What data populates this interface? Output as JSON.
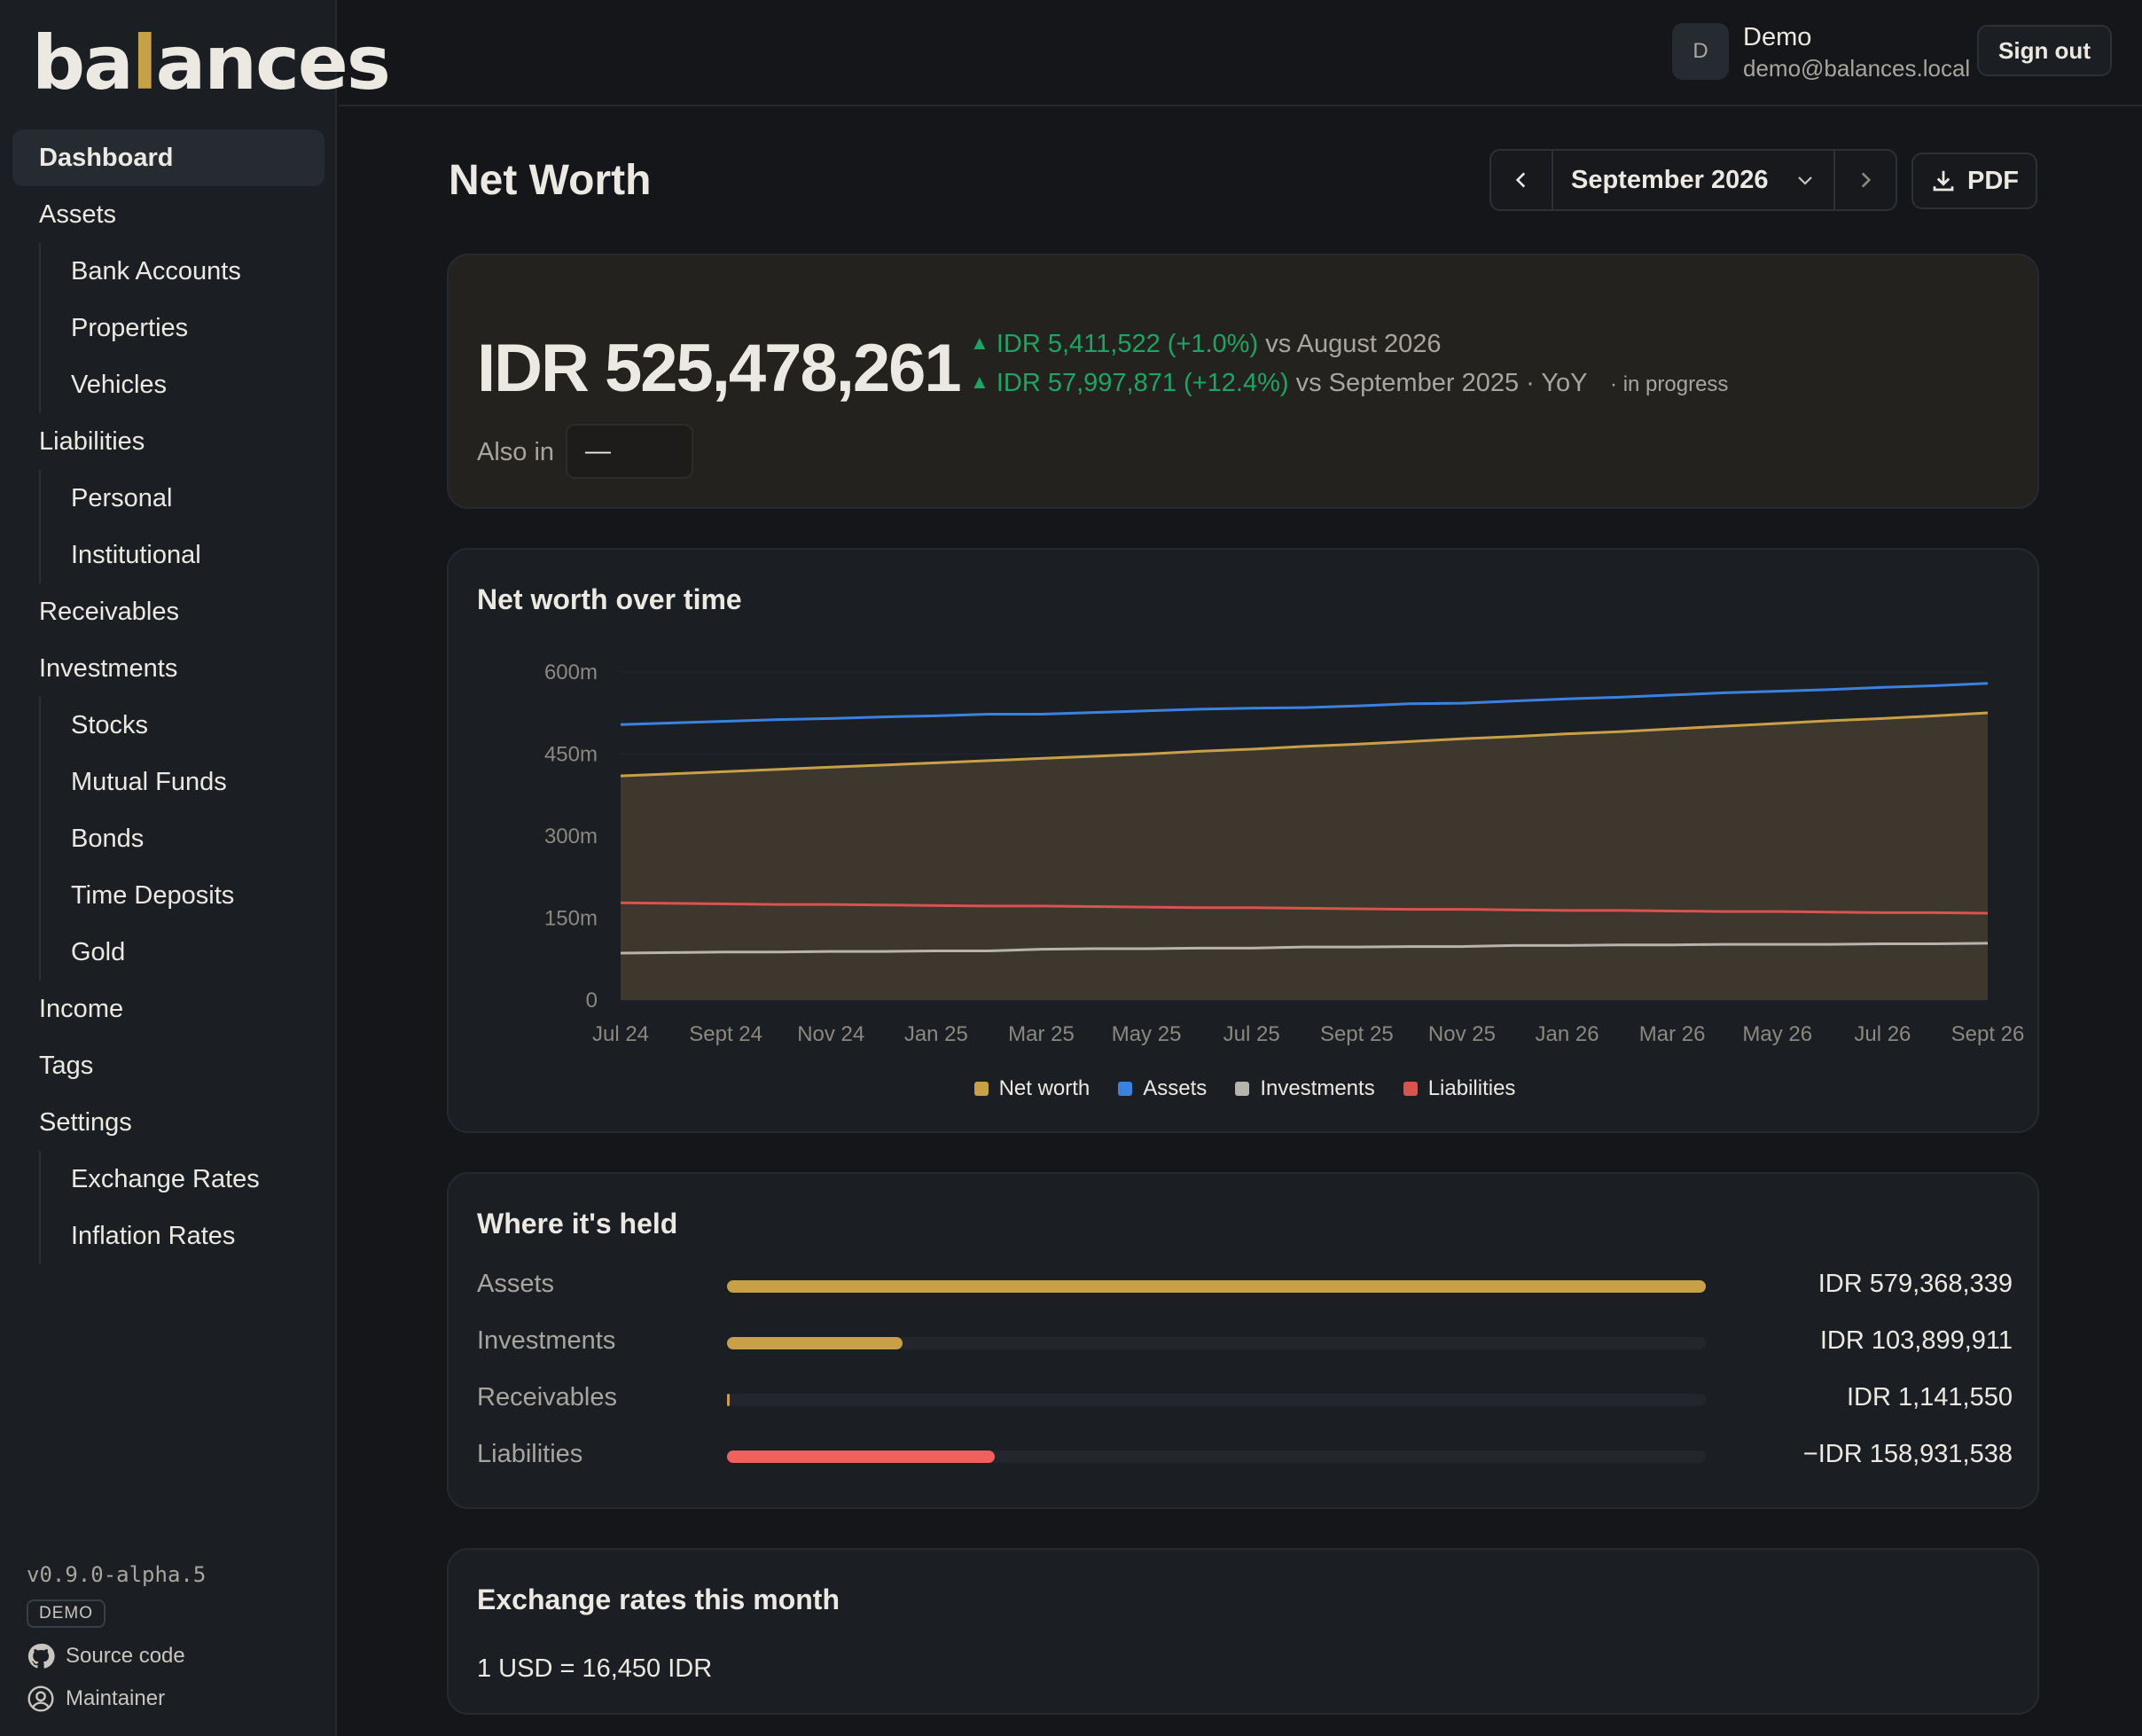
{
  "app": {
    "logo_before": "ba",
    "logo_accent": "l",
    "logo_after": "ances"
  },
  "sidebar": {
    "items": [
      {
        "label": "Dashboard",
        "active": true
      },
      {
        "label": "Assets",
        "children": [
          "Bank Accounts",
          "Properties",
          "Vehicles"
        ]
      },
      {
        "label": "Liabilities",
        "children": [
          "Personal",
          "Institutional"
        ]
      },
      {
        "label": "Receivables"
      },
      {
        "label": "Investments",
        "children": [
          "Stocks",
          "Mutual Funds",
          "Bonds",
          "Time Deposits",
          "Gold"
        ]
      },
      {
        "label": "Income"
      },
      {
        "label": "Tags"
      },
      {
        "label": "Settings",
        "children": [
          "Exchange Rates",
          "Inflation Rates"
        ]
      }
    ],
    "version": "v0.9.0-alpha.5",
    "badge": "DEMO",
    "source_link": "Source code",
    "maintainer_link": "Maintainer"
  },
  "topbar": {
    "avatar_initial": "D",
    "user_name": "Demo",
    "user_email": "demo@balances.local",
    "signout_label": "Sign out"
  },
  "page": {
    "title": "Net Worth",
    "month": "September 2026",
    "pdf_label": "PDF"
  },
  "hero": {
    "amount": "IDR 525,478,261",
    "mom_change": "IDR 5,411,522 (+1.0%)",
    "mom_compare": "vs August 2026",
    "yoy_change": "IDR 57,997,871 (+12.4%)",
    "yoy_compare": "vs September 2025 · YoY",
    "status": "· in progress",
    "also_in_label": "Also in",
    "also_in_value": "—"
  },
  "chart_section": {
    "title": "Net worth over time"
  },
  "chart_data": {
    "type": "area",
    "title": "Net worth over time",
    "x": [
      "Jul 24",
      "Aug 24",
      "Sept 24",
      "Oct 24",
      "Nov 24",
      "Dec 24",
      "Jan 25",
      "Feb 25",
      "Mar 25",
      "Apr 25",
      "May 25",
      "Jun 25",
      "Jul 25",
      "Aug 25",
      "Sept 25",
      "Oct 25",
      "Nov 25",
      "Dec 25",
      "Jan 26",
      "Feb 26",
      "Mar 26",
      "Apr 26",
      "May 26",
      "Jun 26",
      "Jul 26",
      "Aug 26",
      "Sept 26"
    ],
    "x_tick_labels": [
      "Jul 24",
      "Sept 24",
      "Nov 24",
      "Jan 25",
      "Mar 25",
      "May 25",
      "Jul 25",
      "Sept 25",
      "Nov 25",
      "Jan 26",
      "Mar 26",
      "May 26",
      "Jul 26",
      "Sept 26"
    ],
    "y_ticks": [
      "0",
      "150m",
      "300m",
      "450m",
      "600m"
    ],
    "ylim": [
      0,
      600000000
    ],
    "series": [
      {
        "name": "Net worth",
        "color": "#c8a047",
        "values": [
          410000000,
          414000000,
          418000000,
          422000000,
          426000000,
          430000000,
          434000000,
          438000000,
          442000000,
          446000000,
          450000000,
          455000000,
          459000000,
          464000000,
          468000000,
          473000000,
          478000000,
          482000000,
          487000000,
          491000000,
          496000000,
          501000000,
          506000000,
          511000000,
          515000000,
          520000000,
          525478261
        ]
      },
      {
        "name": "Assets",
        "color": "#3b82e0",
        "values": [
          504000000,
          507000000,
          510000000,
          513000000,
          515000000,
          518000000,
          520000000,
          523000000,
          523000000,
          526000000,
          529000000,
          532000000,
          534000000,
          535000000,
          538000000,
          542000000,
          543000000,
          547000000,
          551000000,
          554000000,
          558000000,
          562000000,
          565000000,
          568000000,
          572000000,
          575000000,
          579368339
        ]
      },
      {
        "name": "Investments",
        "color": "#b7b4ad",
        "values": [
          86000000,
          87000000,
          88000000,
          88000000,
          89000000,
          89000000,
          90000000,
          90000000,
          93000000,
          94000000,
          94000000,
          95000000,
          95000000,
          97000000,
          97000000,
          98000000,
          98000000,
          100000000,
          100000000,
          101000000,
          101000000,
          102000000,
          102000000,
          102000000,
          103000000,
          103000000,
          103899911
        ]
      },
      {
        "name": "Liabilities",
        "color": "#d9534f",
        "values": [
          178000000,
          177000000,
          176000000,
          175000000,
          175000000,
          174000000,
          173000000,
          172000000,
          172000000,
          171000000,
          170000000,
          169000000,
          169000000,
          168000000,
          167000000,
          166000000,
          166000000,
          165000000,
          164000000,
          164000000,
          163000000,
          162000000,
          162000000,
          161000000,
          160000000,
          160000000,
          158931538
        ]
      }
    ]
  },
  "held": {
    "title": "Where it's held",
    "rows": [
      {
        "label": "Assets",
        "value": "IDR 579,368,339",
        "fraction": 1.0,
        "color": "#c8a047"
      },
      {
        "label": "Investments",
        "value": "IDR 103,899,911",
        "fraction": 0.179,
        "color": "#c8a047"
      },
      {
        "label": "Receivables",
        "value": "IDR 1,141,550",
        "fraction": 0.002,
        "color": "#c8a047"
      },
      {
        "label": "Liabilities",
        "value": "−IDR 158,931,538",
        "fraction": 0.274,
        "color": "#f0605c"
      }
    ]
  },
  "fx": {
    "title": "Exchange rates this month",
    "line": "1 USD = 16,450 IDR"
  }
}
